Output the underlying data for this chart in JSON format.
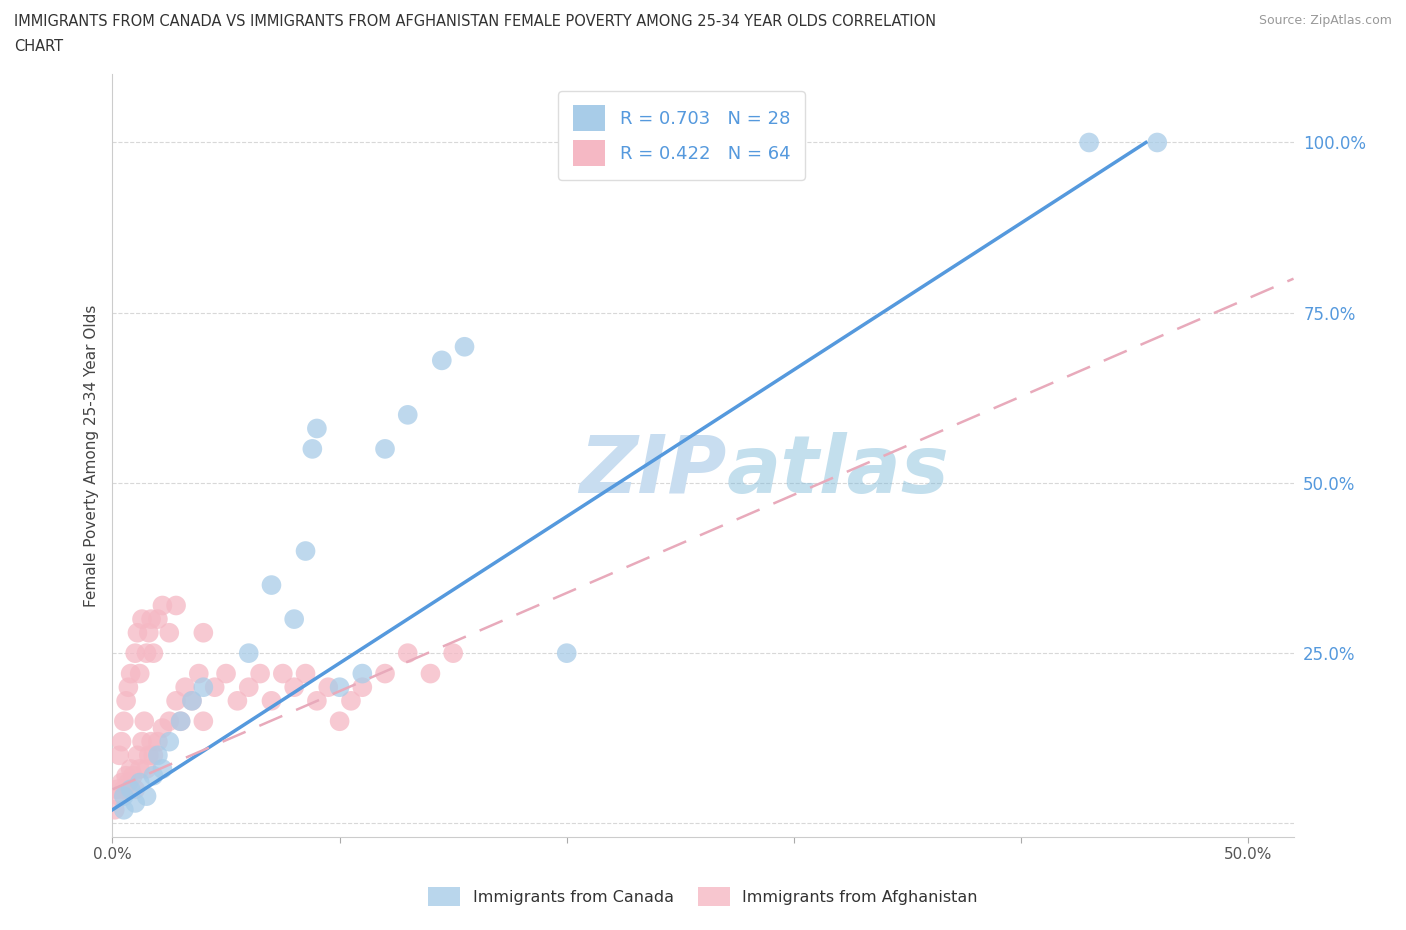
{
  "title_line1": "IMMIGRANTS FROM CANADA VS IMMIGRANTS FROM AFGHANISTAN FEMALE POVERTY AMONG 25-34 YEAR OLDS CORRELATION",
  "title_line2": "CHART",
  "source": "Source: ZipAtlas.com",
  "ylabel": "Female Poverty Among 25-34 Year Olds",
  "xlim": [
    0.0,
    0.52
  ],
  "ylim": [
    -0.02,
    1.1
  ],
  "xticks": [
    0.0,
    0.1,
    0.2,
    0.3,
    0.4,
    0.5
  ],
  "yticks": [
    0.0,
    0.25,
    0.5,
    0.75,
    1.0
  ],
  "ytick_labels": [
    "",
    "25.0%",
    "50.0%",
    "75.0%",
    "100.0%"
  ],
  "xtick_labels": [
    "0.0%",
    "",
    "",
    "",
    "",
    "50.0%"
  ],
  "canada_R": 0.703,
  "canada_N": 28,
  "afghanistan_R": 0.422,
  "afghanistan_N": 64,
  "canada_color": "#a8cce8",
  "afghanistan_color": "#f5b8c4",
  "canada_line_color": "#5599dd",
  "afghanistan_line_color": "#e8aabb",
  "ytick_color": "#5599dd",
  "watermark_color": "#c8ddf0",
  "background_color": "#ffffff",
  "grid_color": "#d8d8d8",
  "canada_scatter_x": [
    0.005,
    0.005,
    0.008,
    0.01,
    0.012,
    0.015,
    0.018,
    0.02,
    0.022,
    0.025,
    0.03,
    0.035,
    0.04,
    0.06,
    0.07,
    0.08,
    0.085,
    0.088,
    0.09,
    0.1,
    0.11,
    0.12,
    0.13,
    0.145,
    0.155,
    0.2,
    0.43,
    0.46
  ],
  "canada_scatter_y": [
    0.02,
    0.04,
    0.05,
    0.03,
    0.06,
    0.04,
    0.07,
    0.1,
    0.08,
    0.12,
    0.15,
    0.18,
    0.2,
    0.25,
    0.35,
    0.3,
    0.4,
    0.55,
    0.58,
    0.2,
    0.22,
    0.55,
    0.6,
    0.68,
    0.7,
    0.25,
    1.0,
    1.0
  ],
  "afghanistan_scatter_x": [
    0.001,
    0.002,
    0.003,
    0.003,
    0.004,
    0.004,
    0.005,
    0.005,
    0.006,
    0.006,
    0.007,
    0.007,
    0.008,
    0.008,
    0.009,
    0.01,
    0.01,
    0.011,
    0.011,
    0.012,
    0.012,
    0.013,
    0.013,
    0.014,
    0.015,
    0.015,
    0.016,
    0.016,
    0.017,
    0.017,
    0.018,
    0.018,
    0.02,
    0.02,
    0.022,
    0.022,
    0.025,
    0.025,
    0.028,
    0.028,
    0.03,
    0.032,
    0.035,
    0.038,
    0.04,
    0.04,
    0.045,
    0.05,
    0.055,
    0.06,
    0.065,
    0.07,
    0.075,
    0.08,
    0.085,
    0.09,
    0.095,
    0.1,
    0.105,
    0.11,
    0.12,
    0.13,
    0.14,
    0.15
  ],
  "afghanistan_scatter_y": [
    0.02,
    0.05,
    0.04,
    0.1,
    0.06,
    0.12,
    0.05,
    0.15,
    0.07,
    0.18,
    0.06,
    0.2,
    0.08,
    0.22,
    0.07,
    0.05,
    0.25,
    0.1,
    0.28,
    0.08,
    0.22,
    0.12,
    0.3,
    0.15,
    0.08,
    0.25,
    0.1,
    0.28,
    0.12,
    0.3,
    0.1,
    0.25,
    0.12,
    0.3,
    0.14,
    0.32,
    0.15,
    0.28,
    0.18,
    0.32,
    0.15,
    0.2,
    0.18,
    0.22,
    0.15,
    0.28,
    0.2,
    0.22,
    0.18,
    0.2,
    0.22,
    0.18,
    0.22,
    0.2,
    0.22,
    0.18,
    0.2,
    0.15,
    0.18,
    0.2,
    0.22,
    0.25,
    0.22,
    0.25
  ],
  "canada_line_x": [
    0.0,
    0.455
  ],
  "canada_line_y": [
    0.02,
    1.0
  ],
  "afghanistan_line_x": [
    0.0,
    0.52
  ],
  "afghanistan_line_y": [
    0.05,
    0.8
  ]
}
